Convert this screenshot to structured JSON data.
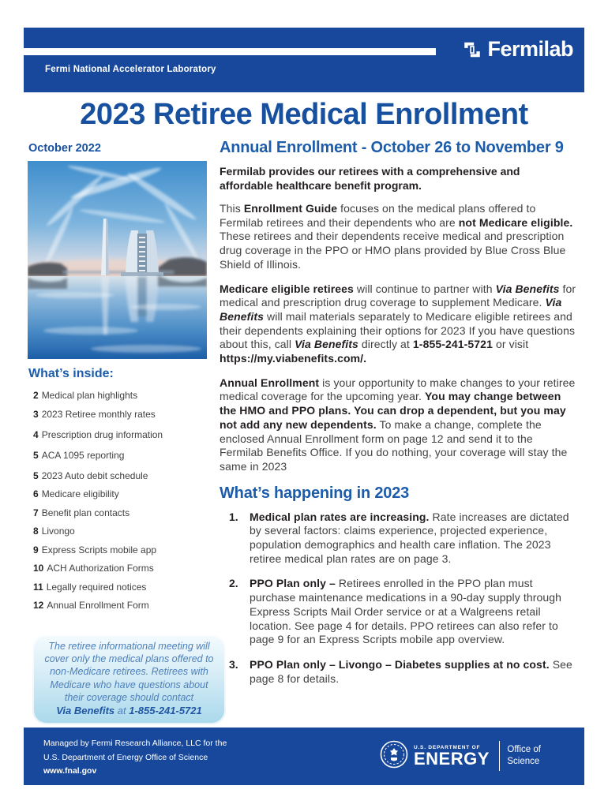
{
  "header": {
    "lab_name": "Fermi National Accelerator Laboratory",
    "brand_name": "Fermilab"
  },
  "title": "2023 Retiree Medical Enrollment",
  "issue_date": "October 2022",
  "whats_inside": {
    "heading": "What’s inside:",
    "items": [
      {
        "page": "2",
        "label": "Medical plan highlights"
      },
      {
        "page": "3",
        "label": "2023 Retiree monthly rates"
      },
      {
        "page": "4",
        "label": "Prescription drug information"
      },
      {
        "page": "5",
        "label": "ACA 1095 reporting"
      },
      {
        "page": "5",
        "label": "2023 Auto debit schedule"
      },
      {
        "page": "6",
        "label": "Medicare eligibility"
      },
      {
        "page": "7",
        "label": "Benefit plan contacts"
      },
      {
        "page": "8",
        "label": "Livongo"
      },
      {
        "page": "9",
        "label": "Express Scripts mobile app"
      },
      {
        "page": "10",
        "label": "ACH Authorization Forms"
      },
      {
        "page": "11",
        "label": "Legally required notices"
      },
      {
        "page": "12",
        "label": "Annual Enrollment Form"
      }
    ]
  },
  "callout": {
    "body": "The retiree informational meeting will cover only the medical plans offered to non-Medicare retirees. Retirees with Medicare who have questions about their coverage should contact",
    "contact": [
      {
        "text": "Via Benefits",
        "bold": true
      },
      {
        "text": " at ",
        "bold": false
      },
      {
        "text": "1-855-241-5721",
        "bold": true
      }
    ]
  },
  "main": {
    "heading": "Annual Enrollment - October 26 to November 9",
    "lead": "Fermilab provides our retirees with a comprehensive and affordable healthcare benefit program.",
    "paragraphs": [
      {
        "segments": [
          {
            "text": "This ",
            "bold": false
          },
          {
            "text": "Enrollment Guide",
            "bold": true
          },
          {
            "text": " focuses on the medical plans offered to Fermilab retirees and their dependents who are ",
            "bold": false
          },
          {
            "text": "not Medicare eligible.",
            "bold": true
          },
          {
            "text": " These retirees and their dependents receive medical and prescription drug coverage in the PPO or HMO plans provided by Blue Cross Blue Shield of Illinois.",
            "bold": false
          }
        ]
      },
      {
        "segments": [
          {
            "text": "Medicare eligible retirees",
            "bold": true
          },
          {
            "text": " will continue to partner with ",
            "bold": false
          },
          {
            "text": "Via Benefits",
            "bold": true,
            "italic": true
          },
          {
            "text": " for medical and prescription drug coverage to supplement Medicare. ",
            "bold": false
          },
          {
            "text": "Via Benefits",
            "bold": true,
            "italic": true
          },
          {
            "text": " will mail materials separately to Medicare eligible retirees and their dependents explaining their options for 2023 If you have questions about this, call ",
            "bold": false
          },
          {
            "text": "Via Benefits",
            "bold": true,
            "italic": true
          },
          {
            "text": " directly at ",
            "bold": false
          },
          {
            "text": "1-855-241-5721",
            "bold": true
          },
          {
            "text": " or visit ",
            "bold": false
          },
          {
            "text": "https://my.viabenefits.com/.",
            "bold": true
          }
        ]
      },
      {
        "segments": [
          {
            "text": "Annual Enrollment",
            "bold": true
          },
          {
            "text": " is your opportunity to make changes to your retiree medical coverage for the upcoming year. ",
            "bold": false
          },
          {
            "text": "You may change between the HMO and PPO plans. You can drop a dependent, but you may not add any new dependents.",
            "bold": true
          },
          {
            "text": " To make a change, complete the enclosed Annual Enrollment form on page 12 and send it to the Fermilab Benefits Office. If you do nothing, your coverage will stay the same in 2023",
            "bold": false
          }
        ]
      }
    ],
    "happening": {
      "heading": "What’s happening in 2023",
      "items": [
        {
          "number": "1.",
          "segments": [
            {
              "text": "Medical plan rates are increasing.",
              "bold": true
            },
            {
              "text": " Rate increases are dictated by several factors: claims experience, projected experience, population demographics and health care inflation. The 2023 retiree medical plan rates are on page 3.",
              "bold": false
            }
          ]
        },
        {
          "number": "2.",
          "segments": [
            {
              "text": "PPO Plan only – ",
              "bold": true
            },
            {
              "text": "Retirees enrolled in the PPO plan must purchase maintenance medications in a 90-day supply through Express Scripts Mail Order service or at a Walgreens retail location. See page 4 for details. PPO retirees can also refer to page 9 for an Express Scripts mobile app overview.",
              "bold": false
            }
          ]
        },
        {
          "number": "3.",
          "segments": [
            {
              "text": "PPO Plan only – Livongo – Diabetes supplies at no cost.",
              "bold": true
            },
            {
              "text": " See page 8 for details.",
              "bold": false
            }
          ]
        }
      ]
    }
  },
  "footer": {
    "line1": "Managed by Fermi Research Alliance, LLC for the",
    "line2": "U.S. Department of Energy Office of Science",
    "line3": "www.fnal.gov",
    "doe": {
      "dept": "U.S. DEPARTMENT OF",
      "energy": "ENERGY",
      "office_line1": "Office of",
      "office_line2": "Science"
    }
  },
  "colors": {
    "band_blue": "#18489b",
    "title_blue": "#17509f",
    "heading_blue": "#1c5cab",
    "callout_blue": "#a9d8eb",
    "body_text": "#414042"
  }
}
